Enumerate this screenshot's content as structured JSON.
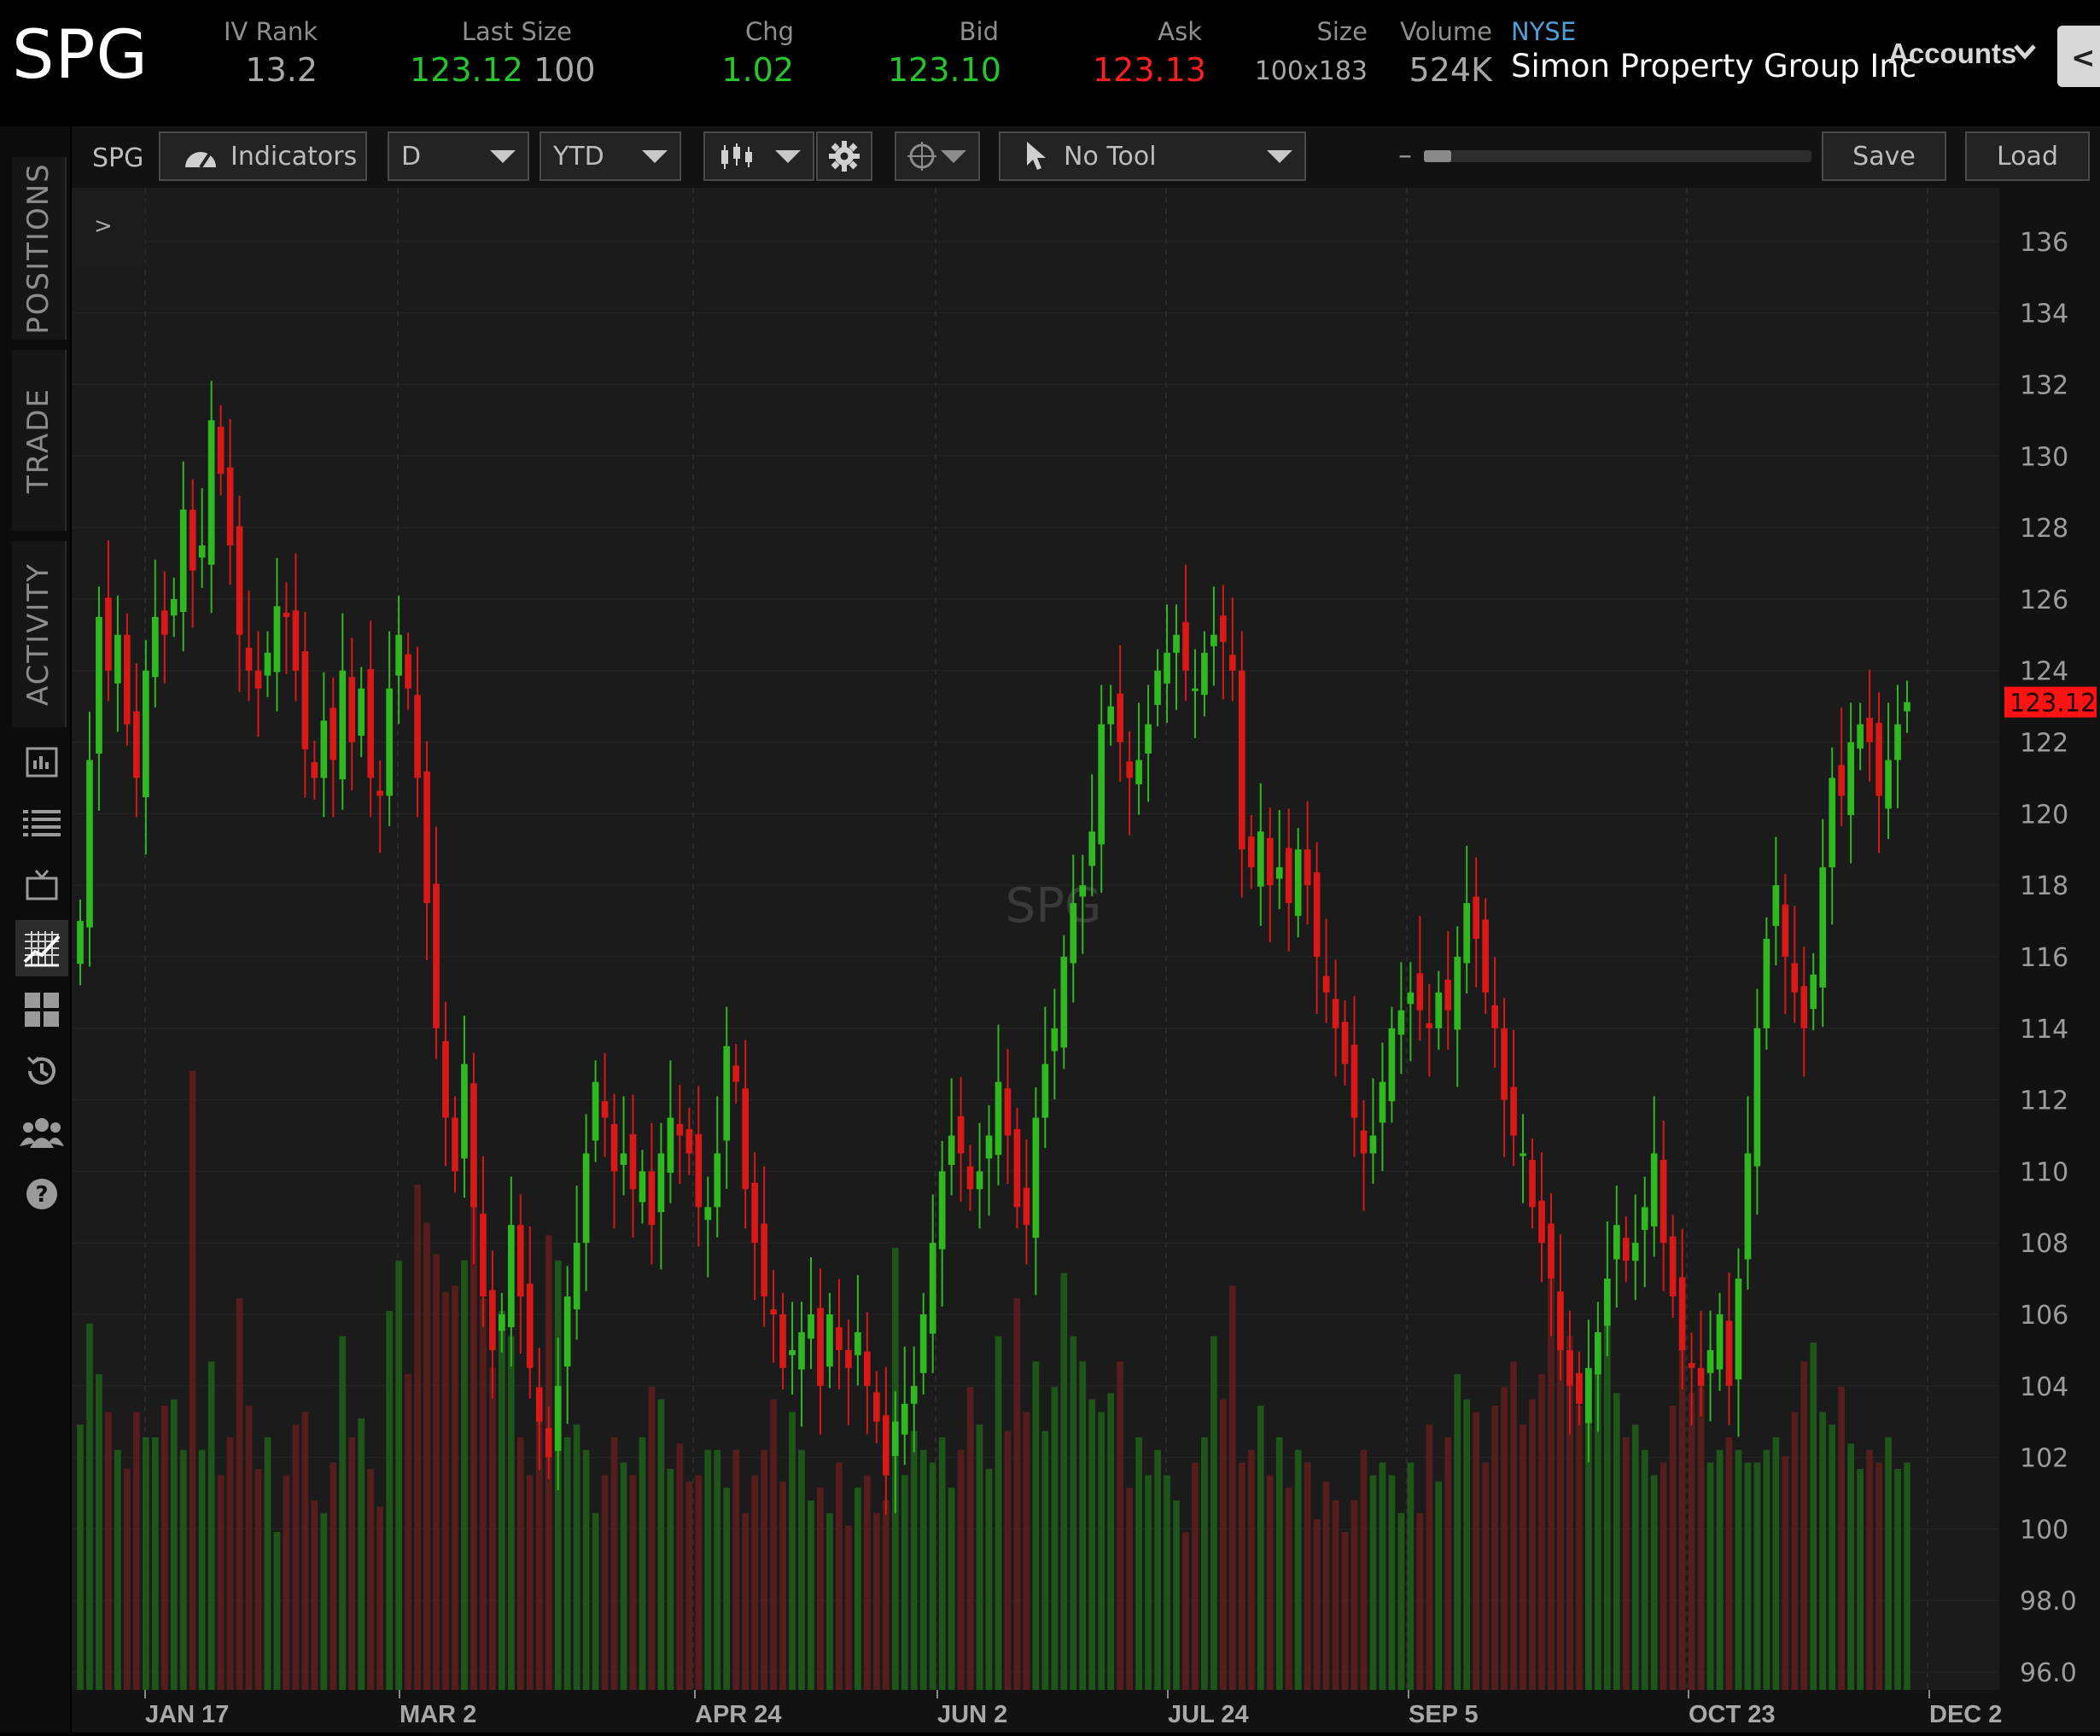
{
  "header": {
    "symbol": "SPG",
    "quotes": [
      {
        "label": "IV Rank",
        "value": "13.2",
        "value_color": "#a8a8a8"
      },
      {
        "label": "Last Size",
        "value": "123.12",
        "value2": "100"
      },
      {
        "label": "Chg",
        "value": "1.02"
      },
      {
        "label": "Bid",
        "value": "123.10"
      },
      {
        "label": "Ask",
        "value": "123.13"
      },
      {
        "label": "Size",
        "value": "100x183"
      },
      {
        "label": "Volume",
        "value": "524K"
      }
    ],
    "exchange": "NYSE",
    "company": "Simon Property Group Inc",
    "accounts_label": "Accounts",
    "right_tab_glyph": "<"
  },
  "rail": {
    "tabs": [
      "POSITIONS",
      "TRADE",
      "ACTIVITY"
    ],
    "icons": [
      "news-icon",
      "list-icon",
      "tv-icon",
      "chart-icon",
      "grid-icon",
      "history-icon",
      "community-icon",
      "help-icon"
    ],
    "collapse_glyph": ">"
  },
  "toolbar": {
    "symbol": "SPG",
    "indicators_label": "Indicators",
    "aggregation": "D",
    "range": "YTD",
    "tool_label": "No Tool",
    "zoom_minus": "–",
    "zoom_plus": "+",
    "zoom_level": 0.07,
    "save_label": "Save",
    "load_label": "Load"
  },
  "colors": {
    "up": "#2fb81f",
    "down": "#d91818",
    "background": "#1c1c1c",
    "last_price_tag": "#ff1212"
  },
  "chart_data": {
    "type": "candlestick",
    "title": "",
    "watermark": "SPG",
    "x_labels": [
      "JAN 17",
      "MAR 2",
      "APR 24",
      "JUN 2",
      "JUL 24",
      "SEP 5",
      "OCT 23",
      "DEC 2"
    ],
    "y_ticks": [
      "136",
      "134",
      "132",
      "130",
      "128",
      "126",
      "124",
      "122",
      "120",
      "118",
      "116",
      "114",
      "112",
      "110",
      "108",
      "106",
      "104",
      "102",
      "100",
      "98.0",
      "96.0"
    ],
    "ylim": [
      95.5,
      137.5
    ],
    "last_price": "123.12",
    "grid": true,
    "closes": [
      117.0,
      121.5,
      125.5,
      124.0,
      125.0,
      122.5,
      121.0,
      124.0,
      125.5,
      125.0,
      126.0,
      128.5,
      126.8,
      127.5,
      131.0,
      129.5,
      127.5,
      125.0,
      124.0,
      123.5,
      124.5,
      125.8,
      125.5,
      124.0,
      121.8,
      121.0,
      122.6,
      121.5,
      124.0,
      122.0,
      123.5,
      121.0,
      120.5,
      123.5,
      125.0,
      123.5,
      121.0,
      117.5,
      114.0,
      111.5,
      110.0,
      113.0,
      109.0,
      106.5,
      105.0,
      106.0,
      108.5,
      106.5,
      104.5,
      103.0,
      102.0,
      104.0,
      106.5,
      108.0,
      110.5,
      112.5,
      111.5,
      110.0,
      110.5,
      109.5,
      110.0,
      108.5,
      110.5,
      111.5,
      111.0,
      110.5,
      109.0,
      109.0,
      110.5,
      113.5,
      112.5,
      109.5,
      108.0,
      106.5,
      106.0,
      104.5,
      105.0,
      105.5,
      106.0,
      104.0,
      106.0,
      105.0,
      104.5,
      105.5,
      104.0,
      103.0,
      101.5,
      103.0,
      103.5,
      104.0,
      106.0,
      108.0,
      110.0,
      111.0,
      110.5,
      109.5,
      110.0,
      111.0,
      112.5,
      111.0,
      109.0,
      108.5,
      111.5,
      113.0,
      114.0,
      116.0,
      117.5,
      118.0,
      119.5,
      122.5,
      123.0,
      122.0,
      121.0,
      121.5,
      122.5,
      124.0,
      124.5,
      125.0,
      124.0,
      123.5,
      124.5,
      125.0,
      124.8,
      124.0,
      119.0,
      118.5,
      119.5,
      118.0,
      118.5,
      117.5,
      119.0,
      118.0,
      116.0,
      115.0,
      114.0,
      113.0,
      111.5,
      110.5,
      111.0,
      112.5,
      114.0,
      114.5,
      115.0,
      114.5,
      114.0,
      115.0,
      114.5,
      116.0,
      117.5,
      116.5,
      115.0,
      114.0,
      112.0,
      111.0,
      110.5,
      109.0,
      108.0,
      107.0,
      105.0,
      104.0,
      103.5,
      104.5,
      105.5,
      107.0,
      108.5,
      107.5,
      108.0,
      109.0,
      110.5,
      108.0,
      106.5,
      105.0,
      104.5,
      104.0,
      105.0,
      106.0,
      104.0,
      107.0,
      110.5,
      114.0,
      116.5,
      118.0,
      116.0,
      115.0,
      114.0,
      115.5,
      118.5,
      121.0,
      120.5,
      122.0,
      122.5,
      122.0,
      120.5,
      121.5,
      122.5,
      123.12
    ],
    "volume_max": 1.0,
    "volumes": [
      0.42,
      0.58,
      0.5,
      0.44,
      0.38,
      0.35,
      0.44,
      0.4,
      0.4,
      0.45,
      0.46,
      0.38,
      0.98,
      0.38,
      0.52,
      0.34,
      0.4,
      0.62,
      0.45,
      0.35,
      0.4,
      0.25,
      0.34,
      0.42,
      0.44,
      0.3,
      0.28,
      0.36,
      0.56,
      0.4,
      0.43,
      0.35,
      0.29,
      0.6,
      0.68,
      0.5,
      0.8,
      0.74,
      0.69,
      0.63,
      0.64,
      0.68,
      0.8,
      0.62,
      0.51,
      0.6,
      0.56,
      0.4,
      0.34,
      0.44,
      0.72,
      0.68,
      0.4,
      0.42,
      0.38,
      0.28,
      0.34,
      0.4,
      0.36,
      0.34,
      0.4,
      0.48,
      0.46,
      0.35,
      0.39,
      0.33,
      0.34,
      0.38,
      0.38,
      0.32,
      0.38,
      0.28,
      0.34,
      0.38,
      0.46,
      0.33,
      0.44,
      0.38,
      0.3,
      0.32,
      0.28,
      0.36,
      0.26,
      0.32,
      0.34,
      0.28,
      0.3,
      0.7,
      0.34,
      0.41,
      0.38,
      0.36,
      0.4,
      0.32,
      0.38,
      0.48,
      0.42,
      0.35,
      0.56,
      0.41,
      0.62,
      0.44,
      0.52,
      0.41,
      0.48,
      0.66,
      0.56,
      0.52,
      0.46,
      0.44,
      0.47,
      0.52,
      0.32,
      0.4,
      0.34,
      0.38,
      0.34,
      0.3,
      0.25,
      0.36,
      0.4,
      0.56,
      0.46,
      0.64,
      0.36,
      0.38,
      0.45,
      0.34,
      0.4,
      0.32,
      0.38,
      0.36,
      0.27,
      0.33,
      0.3,
      0.25,
      0.3,
      0.38,
      0.34,
      0.36,
      0.34,
      0.28,
      0.36,
      0.28,
      0.42,
      0.33,
      0.4,
      0.5,
      0.46,
      0.44,
      0.36,
      0.45,
      0.48,
      0.52,
      0.42,
      0.46,
      0.5,
      0.66,
      0.62,
      0.56,
      0.45,
      0.5,
      0.54,
      0.58,
      0.47,
      0.4,
      0.42,
      0.38,
      0.34,
      0.36,
      0.45,
      0.54,
      0.47,
      0.48,
      0.36,
      0.38,
      0.4,
      0.38,
      0.36,
      0.36,
      0.38,
      0.4,
      0.37,
      0.44,
      0.52,
      0.55,
      0.44,
      0.42,
      0.48,
      0.39,
      0.35,
      0.38,
      0.36,
      0.4,
      0.35,
      0.36,
      0.36,
      0.32,
      0.34,
      0.32,
      0.36,
      0.34,
      0.3,
      0.26,
      0.16
    ]
  }
}
